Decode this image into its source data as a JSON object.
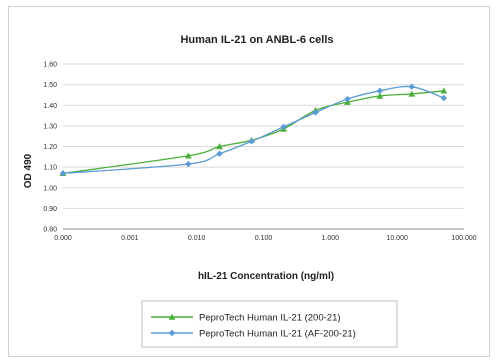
{
  "chart_data": {
    "type": "line",
    "title": "Human IL-21 on ANBL-6 cells",
    "xlabel": "hIL-21 Concentration (ng/ml)",
    "ylabel": "OD 490",
    "xscale": "log",
    "xlim": [
      0.0001,
      100
    ],
    "ylim": [
      0.8,
      1.6
    ],
    "x_tick_labels": [
      "0.000",
      "0.001",
      "0.010",
      "0.100",
      "1.000",
      "10.000",
      "100.000"
    ],
    "y_tick_labels": [
      "0.80",
      "0.90",
      "1.00",
      "1.10",
      "1.20",
      "1.30",
      "1.40",
      "1.50",
      "1.60"
    ],
    "grid": true,
    "legend_position": "bottom",
    "series": [
      {
        "name": "PeproTech Human IL-21 (200-21)",
        "color": "#4cae3c",
        "marker": "triangle",
        "x": [
          0.0001,
          0.0075,
          0.022,
          0.066,
          0.2,
          0.6,
          1.8,
          5.5,
          16.5,
          50
        ],
        "y": [
          1.07,
          1.155,
          1.2,
          1.23,
          1.285,
          1.375,
          1.415,
          1.445,
          1.455,
          1.47
        ]
      },
      {
        "name": "PeproTech Human IL-21 (AF-200-21)",
        "color": "#5b9bd5",
        "marker": "diamond",
        "x": [
          0.0001,
          0.0075,
          0.022,
          0.066,
          0.2,
          0.6,
          1.8,
          5.5,
          16.5,
          50
        ],
        "y": [
          1.07,
          1.115,
          1.165,
          1.225,
          1.295,
          1.365,
          1.43,
          1.47,
          1.49,
          1.435
        ]
      }
    ]
  }
}
